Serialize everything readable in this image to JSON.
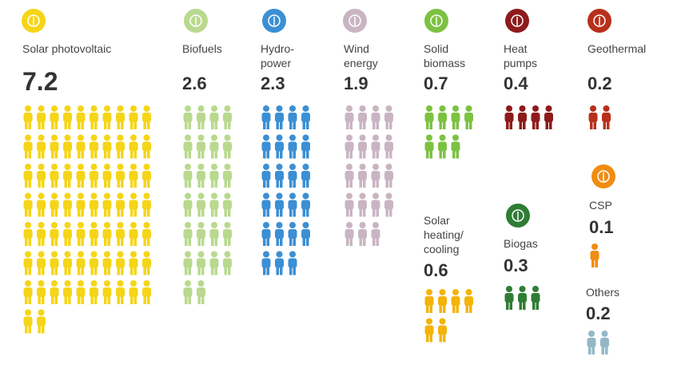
{
  "chart_data": {
    "type": "pictograph",
    "categories": [
      "Solar photovoltaic",
      "Biofuels",
      "Hydro-\npower",
      "Wind\nenergy",
      "Solid\nbiomass",
      "Heat\npumps",
      "Geothermal",
      "Solar\nheating/\ncooling",
      "Biogas",
      "CSP",
      "Others"
    ],
    "values": [
      7.2,
      2.6,
      2.3,
      1.9,
      0.7,
      0.4,
      0.2,
      0.6,
      0.3,
      0.1,
      0.2
    ],
    "colors": [
      "#f5d517",
      "#b9d98e",
      "#3b8fd4",
      "#c9b5c2",
      "#7cc242",
      "#8e1b1b",
      "#b8301c",
      "#f3b40a",
      "#2f7d34",
      "#f08c12",
      "#94b7c6"
    ]
  }
}
